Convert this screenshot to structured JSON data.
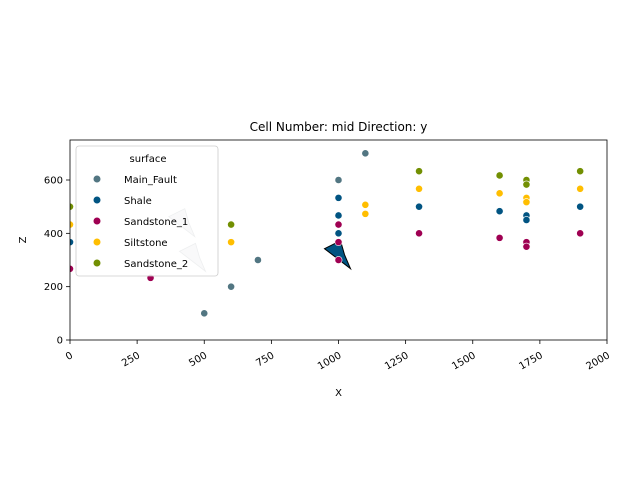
{
  "chart_data": {
    "type": "scatter",
    "title": "Cell Number: mid Direction: y",
    "xlabel": "X",
    "ylabel": "Z",
    "xlim": [
      0,
      2000
    ],
    "ylim": [
      0,
      750
    ],
    "x_ticks": [
      "0",
      "250",
      "500",
      "750",
      "1000",
      "1250",
      "1500",
      "1750",
      "2000"
    ],
    "y_ticks": [
      "0",
      "200",
      "400",
      "600"
    ],
    "grid": false,
    "legend": {
      "title": "surface",
      "placement": "top-left"
    },
    "series": [
      {
        "name": "Main_Fault",
        "color": "#527682",
        "points": [
          [
            500,
            100
          ],
          [
            600,
            200
          ],
          [
            700,
            300
          ],
          [
            1000,
            600
          ],
          [
            1100,
            700
          ]
        ]
      },
      {
        "name": "Shale",
        "color": "#015482",
        "points": [
          [
            0,
            367
          ],
          [
            1000,
            400
          ],
          [
            1000,
            467
          ],
          [
            1000,
            533
          ],
          [
            1300,
            500
          ],
          [
            1600,
            483
          ],
          [
            1700,
            467
          ],
          [
            1700,
            450
          ],
          [
            1900,
            500
          ]
        ]
      },
      {
        "name": "Sandstone_1",
        "color": "#9f0052",
        "points": [
          [
            0,
            267
          ],
          [
            300,
            233
          ],
          [
            1000,
            300
          ],
          [
            1000,
            367
          ],
          [
            1000,
            433
          ],
          [
            1300,
            400
          ],
          [
            1600,
            383
          ],
          [
            1700,
            367
          ],
          [
            1700,
            350
          ],
          [
            1900,
            400
          ]
        ]
      },
      {
        "name": "Siltstone",
        "color": "#ffbe00",
        "points": [
          [
            0,
            433
          ],
          [
            600,
            367
          ],
          [
            1100,
            473
          ],
          [
            1100,
            507
          ],
          [
            1300,
            567
          ],
          [
            1600,
            550
          ],
          [
            1700,
            533
          ],
          [
            1700,
            517
          ],
          [
            1900,
            567
          ]
        ]
      },
      {
        "name": "Sandstone_2",
        "color": "#728f02",
        "points": [
          [
            0,
            500
          ],
          [
            600,
            433
          ],
          [
            1300,
            633
          ],
          [
            1600,
            617
          ],
          [
            1700,
            600
          ],
          [
            1700,
            583
          ],
          [
            1900,
            633
          ]
        ]
      }
    ],
    "orientation_arrows": [
      {
        "x": 1000,
        "z": 320,
        "color": "#015482"
      },
      {
        "x": 460,
        "z": 310,
        "color": "#c8ccd0"
      },
      {
        "x": 420,
        "z": 440,
        "color": "#c8ccd0"
      }
    ]
  }
}
